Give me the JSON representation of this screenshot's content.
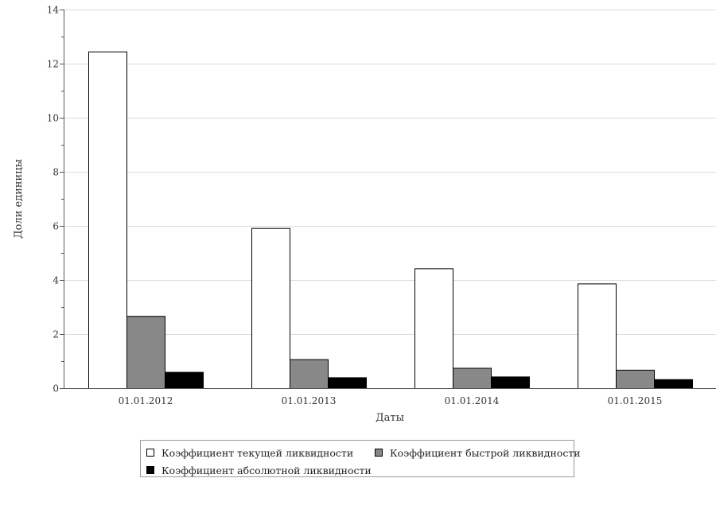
{
  "chart_data": {
    "type": "bar",
    "categories": [
      "01.01.2012",
      "01.01.2013",
      "01.01.2014",
      "01.01.2015"
    ],
    "series": [
      {
        "name": "Коэффициент текущей ликвидности",
        "values": [
          12.45,
          5.92,
          4.43,
          3.87
        ],
        "color": "#ffffff"
      },
      {
        "name": "Коэффициент быстрой ликвидности",
        "values": [
          2.67,
          1.07,
          0.75,
          0.68
        ],
        "color": "#888888"
      },
      {
        "name": "Коэффициент абсолютной ликвидности",
        "values": [
          0.6,
          0.4,
          0.43,
          0.33
        ],
        "color": "#000000"
      }
    ],
    "xlabel": "Даты",
    "ylabel": "Доли единицы",
    "ylim": [
      0,
      14
    ],
    "yticks": [
      0,
      2,
      4,
      6,
      8,
      10,
      12,
      14
    ],
    "grid": true,
    "legend_position": "bottom"
  }
}
